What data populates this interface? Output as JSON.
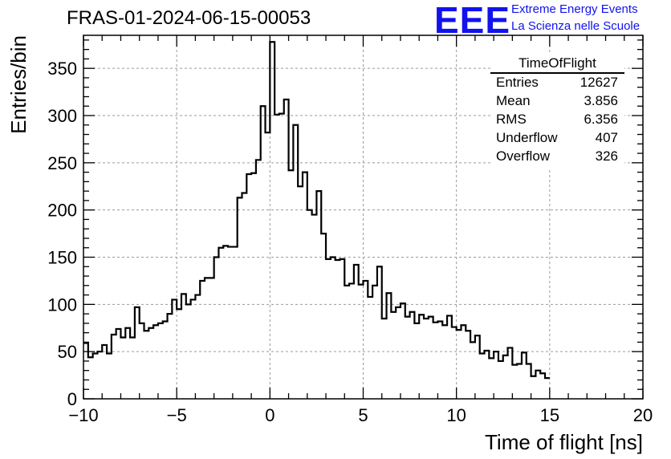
{
  "header": {
    "run_title": "FRAS-01-2024-06-15-00053",
    "logo_text": "EEE",
    "logo_line1": "Extreme Energy Events",
    "logo_line2": "La Scienza nelle Scuole"
  },
  "stats_box": {
    "title": "TimeOfFlight",
    "rows": [
      {
        "label": "Entries",
        "value": "12627"
      },
      {
        "label": "Mean",
        "value": "3.856"
      },
      {
        "label": "RMS",
        "value": "6.356"
      },
      {
        "label": "Underflow",
        "value": "407"
      },
      {
        "label": "Overflow",
        "value": "326"
      }
    ]
  },
  "colors": {
    "logo": "#1212ee",
    "line": "#000000",
    "grid": "#9a9a9a"
  },
  "chart_data": {
    "type": "histogram",
    "xlabel": "Time of flight [ns]",
    "ylabel": "Entries/bin",
    "xlim": [
      -10,
      20
    ],
    "ylim": [
      0,
      385
    ],
    "grid": true,
    "x_ticks": [
      -10,
      -5,
      0,
      5,
      10,
      15,
      20
    ],
    "x_tick_labels": [
      "−10",
      "−5",
      "0",
      "5",
      "10",
      "15",
      "20"
    ],
    "y_ticks": [
      0,
      50,
      100,
      150,
      200,
      250,
      300,
      350
    ],
    "y_tick_labels": [
      "0",
      "50",
      "100",
      "150",
      "200",
      "250",
      "300",
      "350"
    ],
    "bin_width": 0.25,
    "bin_start": -10,
    "values": [
      59,
      44,
      48,
      50,
      57,
      48,
      68,
      74,
      65,
      75,
      65,
      97,
      80,
      72,
      75,
      78,
      80,
      82,
      90,
      105,
      95,
      111,
      100,
      105,
      110,
      125,
      128,
      128,
      150,
      160,
      162,
      161,
      161,
      213,
      218,
      238,
      239,
      253,
      310,
      282,
      378,
      301,
      302,
      317,
      242,
      290,
      225,
      240,
      200,
      195,
      220,
      175,
      148,
      150,
      147,
      148,
      120,
      122,
      142,
      121,
      125,
      108,
      120,
      140,
      85,
      112,
      92,
      97,
      101,
      87,
      92,
      80,
      89,
      85,
      87,
      81,
      82,
      78,
      88,
      76,
      73,
      78,
      72,
      60,
      67,
      48,
      51,
      43,
      50,
      40,
      46,
      54,
      36,
      37,
      49,
      37,
      24,
      30,
      27,
      22
    ]
  }
}
